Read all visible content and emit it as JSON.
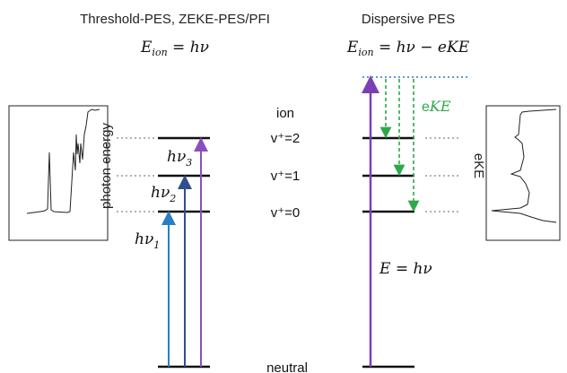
{
  "left_panel": {
    "title": "Threshold-PES, ZEKE-PES/PFI",
    "equation": {
      "lhs": "E",
      "sub": "ion",
      "rhs": " = hν"
    },
    "photon_labels": [
      {
        "base": "hν",
        "sub": "1"
      },
      {
        "base": "hν",
        "sub": "2"
      },
      {
        "base": "hν",
        "sub": "3"
      }
    ],
    "spectrum_axis_label": "photon energy"
  },
  "center_labels": {
    "ion": "ion",
    "levels": [
      "v⁺=2",
      "v⁺=1",
      "v⁺=0"
    ],
    "neutral": "neutral"
  },
  "right_panel": {
    "title": "Dispersive PES",
    "equation": {
      "lhs": "E",
      "sub": "ion",
      "rhs": " = hν − eKE"
    },
    "eke_label": {
      "prefix": "e",
      "italic": "KE"
    },
    "energy_label": "E = hν",
    "spectrum_axis_label": "eKE"
  },
  "colors": {
    "arrow_h1": "#2a7fc4",
    "arrow_h2": "#2f4f8f",
    "arrow_h3": "#8a4fbf",
    "arrow_purple": "#7b3fb5",
    "eke_green": "#2ea84b",
    "dotted_blue": "#5b9bd5",
    "level": "#111111",
    "guide_gray": "#999999"
  }
}
